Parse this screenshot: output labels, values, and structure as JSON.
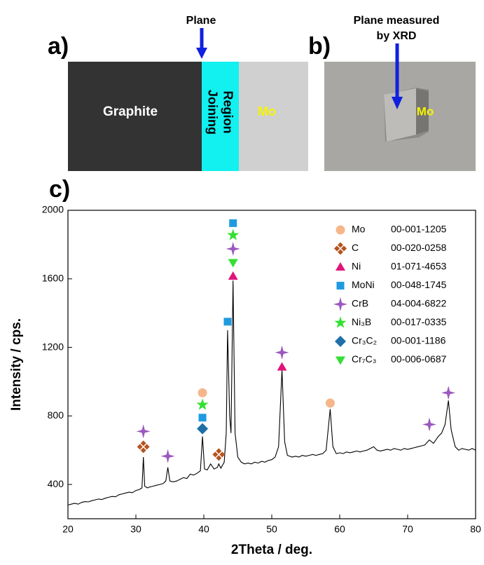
{
  "panels": {
    "a": {
      "label": "a)",
      "arrow_label": "Plane",
      "graphite": "Graphite",
      "joining": [
        "Joining",
        "Region"
      ],
      "mo": "Mo"
    },
    "b": {
      "label": "b)",
      "arrow_label": [
        "Plane measured",
        "by XRD"
      ],
      "mo": "Mo"
    },
    "c": {
      "label": "c)"
    }
  },
  "chart_data": {
    "type": "line",
    "x_label": "2Theta / deg.",
    "y_label": "Intensity / cps.",
    "xlim": [
      20,
      80
    ],
    "ylim": [
      200,
      2000
    ],
    "xticks": [
      20,
      30,
      40,
      50,
      60,
      70,
      80
    ],
    "yticks": [
      400,
      800,
      1200,
      1600,
      2000
    ],
    "pattern": {
      "color": "#000000",
      "x": [
        20,
        20.5,
        21,
        21.5,
        22,
        22.5,
        23,
        23.5,
        24,
        24.5,
        25,
        25.5,
        26,
        26.5,
        27,
        27.5,
        28,
        28.5,
        29,
        29.5,
        30,
        30.5,
        30.9,
        31.1,
        31.3,
        31.7,
        32,
        32.5,
        33,
        33.5,
        34,
        34.4,
        34.7,
        35,
        35.5,
        36,
        36.5,
        37,
        37.5,
        38,
        38.5,
        39,
        39.5,
        39.8,
        40.1,
        40.5,
        41,
        41.5,
        42,
        42.2,
        42.5,
        43,
        43.3,
        43.5,
        43.8,
        44,
        44.3,
        44.6,
        45,
        45.5,
        46,
        46.5,
        47,
        47.5,
        48,
        48.5,
        49,
        49.5,
        50,
        50.5,
        51,
        51.5,
        51.9,
        52.3,
        53,
        53.5,
        54,
        54.5,
        55,
        55.5,
        56,
        56.5,
        57,
        57.5,
        58,
        58.6,
        59,
        59.5,
        60,
        60.5,
        61,
        61.5,
        62,
        62.5,
        63,
        63.5,
        64,
        64.5,
        65,
        65.5,
        66,
        66.5,
        67,
        67.5,
        68,
        68.5,
        69,
        69.5,
        70,
        70.5,
        71,
        71.5,
        72,
        72.5,
        73.2,
        73.8,
        74.5,
        75,
        75.5,
        76,
        76.4,
        77,
        77.5,
        78,
        78.5,
        79,
        79.5,
        80
      ],
      "values": [
        280,
        285,
        290,
        285,
        295,
        300,
        298,
        305,
        310,
        315,
        312,
        320,
        325,
        330,
        328,
        340,
        345,
        350,
        355,
        352,
        365,
        370,
        380,
        560,
        390,
        380,
        385,
        390,
        395,
        400,
        405,
        420,
        500,
        420,
        415,
        420,
        430,
        440,
        435,
        460,
        455,
        465,
        480,
        680,
        490,
        485,
        520,
        490,
        500,
        520,
        495,
        530,
        700,
        1300,
        800,
        700,
        1590,
        700,
        560,
        530,
        520,
        525,
        520,
        530,
        525,
        535,
        530,
        540,
        545,
        560,
        620,
        1070,
        650,
        570,
        560,
        565,
        560,
        570,
        565,
        570,
        575,
        570,
        575,
        580,
        600,
        840,
        620,
        580,
        585,
        580,
        590,
        585,
        590,
        595,
        590,
        595,
        600,
        610,
        620,
        600,
        595,
        600,
        605,
        600,
        610,
        605,
        600,
        610,
        605,
        610,
        615,
        620,
        625,
        630,
        660,
        640,
        680,
        700,
        750,
        890,
        720,
        620,
        600,
        610,
        605,
        600,
        610,
        600
      ]
    },
    "series": [
      {
        "name": "Mo",
        "code": "00-001-1205",
        "marker": "circle",
        "color": "#f5b78a",
        "x": [
          39.8,
          58.6
        ],
        "values": [
          935,
          875
        ]
      },
      {
        "name": "C",
        "code": "00-020-0258",
        "marker": "diamonds",
        "color": "#b5541f",
        "x": [
          31.1,
          42.2
        ],
        "values": [
          620,
          575
        ]
      },
      {
        "name": "Ni",
        "code": "01-071-4653",
        "marker": "triangle",
        "color": "#e0157a",
        "x": [
          44.3,
          51.5
        ],
        "values": [
          1615,
          1085
        ]
      },
      {
        "name": "MoNi",
        "code": "00-048-1745",
        "marker": "square",
        "color": "#1e9be0",
        "x": [
          39.8,
          43.5,
          44.3
        ],
        "values": [
          790,
          1350,
          1925
        ]
      },
      {
        "name": "CrB",
        "code": "04-004-6822",
        "marker": "star4",
        "color": "#9b59c0",
        "x": [
          31.1,
          34.7,
          44.3,
          51.5,
          73.2,
          76
        ],
        "values": [
          710,
          565,
          1775,
          1170,
          750,
          935
        ]
      },
      {
        "name": "Ni₃B",
        "code": "00-017-0335",
        "marker": "star5",
        "color": "#33e033",
        "x": [
          39.8,
          44.3
        ],
        "values": [
          865,
          1855
        ]
      },
      {
        "name": "Cr₃C₂",
        "code": "00-001-1186",
        "marker": "diamond",
        "color": "#1f6fa8",
        "x": [
          39.8
        ],
        "values": [
          725
        ]
      },
      {
        "name": "Cr₇C₃",
        "code": "00-006-0687",
        "marker": "triangle-down",
        "color": "#33e033",
        "x": [
          44.3
        ],
        "values": [
          1695
        ]
      }
    ]
  }
}
